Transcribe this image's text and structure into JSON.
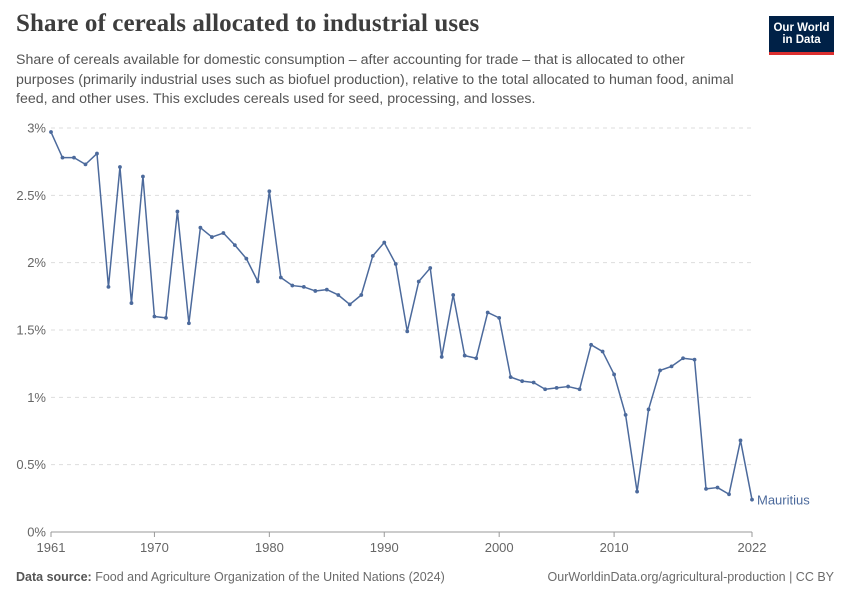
{
  "header": {
    "title": "Share of cereals allocated to industrial uses",
    "subtitle": "Share of cereals available for domestic consumption – after accounting for trade – that is allocated to other purposes (primarily industrial uses such as biofuel production), relative to the total allocated to human food, animal feed, and other uses. This excludes cereals used for seed, processing, and losses.",
    "logo_line1": "Our World",
    "logo_line2": "in Data"
  },
  "footer": {
    "source_label": "Data source:",
    "source_text": "Food and Agriculture Organization of the United Nations (2024)",
    "url_license": "OurWorldinData.org/agricultural-production | CC BY"
  },
  "colors": {
    "series": "#4c6a9c",
    "grid": "#dddddd",
    "axis": "#999999"
  },
  "chart_data": {
    "type": "line",
    "x": [
      1961,
      1962,
      1963,
      1964,
      1965,
      1966,
      1967,
      1968,
      1969,
      1970,
      1971,
      1972,
      1973,
      1974,
      1975,
      1976,
      1977,
      1978,
      1979,
      1980,
      1981,
      1982,
      1983,
      1984,
      1985,
      1986,
      1987,
      1988,
      1989,
      1990,
      1991,
      1992,
      1993,
      1994,
      1995,
      1996,
      1997,
      1998,
      1999,
      2000,
      2001,
      2002,
      2003,
      2004,
      2005,
      2006,
      2007,
      2008,
      2009,
      2010,
      2011,
      2012,
      2013,
      2014,
      2015,
      2016,
      2017,
      2018,
      2019,
      2020,
      2021,
      2022
    ],
    "series": [
      {
        "name": "Mauritius",
        "values": [
          2.97,
          2.78,
          2.78,
          2.73,
          2.81,
          1.82,
          2.71,
          1.7,
          2.64,
          1.6,
          1.59,
          2.38,
          1.55,
          2.26,
          2.19,
          2.22,
          2.13,
          2.03,
          1.86,
          2.53,
          1.89,
          1.83,
          1.82,
          1.79,
          1.8,
          1.76,
          1.69,
          1.76,
          2.05,
          2.15,
          1.99,
          1.49,
          1.86,
          1.96,
          1.3,
          1.76,
          1.31,
          1.29,
          1.63,
          1.59,
          1.15,
          1.12,
          1.11,
          1.06,
          1.07,
          1.08,
          1.06,
          1.39,
          1.34,
          1.17,
          0.87,
          0.3,
          0.91,
          1.2,
          1.23,
          1.29,
          1.28,
          0.32,
          0.33,
          0.28,
          0.68,
          0.24
        ]
      }
    ],
    "y_ticks": [
      {
        "value": 0,
        "label": "0%"
      },
      {
        "value": 0.5,
        "label": "0.5%"
      },
      {
        "value": 1,
        "label": "1%"
      },
      {
        "value": 1.5,
        "label": "1.5%"
      },
      {
        "value": 2,
        "label": "2%"
      },
      {
        "value": 2.5,
        "label": "2.5%"
      },
      {
        "value": 3,
        "label": "3%"
      }
    ],
    "x_ticks": [
      {
        "value": 1961,
        "label": "1961"
      },
      {
        "value": 1970,
        "label": "1970"
      },
      {
        "value": 1980,
        "label": "1980"
      },
      {
        "value": 1990,
        "label": "1990"
      },
      {
        "value": 2000,
        "label": "2000"
      },
      {
        "value": 2010,
        "label": "2010"
      },
      {
        "value": 2022,
        "label": "2022"
      }
    ],
    "xlim": [
      1961,
      2022
    ],
    "ylim": [
      0,
      3
    ],
    "grid": "horizontal dashed",
    "legend": "inline label at line end"
  }
}
